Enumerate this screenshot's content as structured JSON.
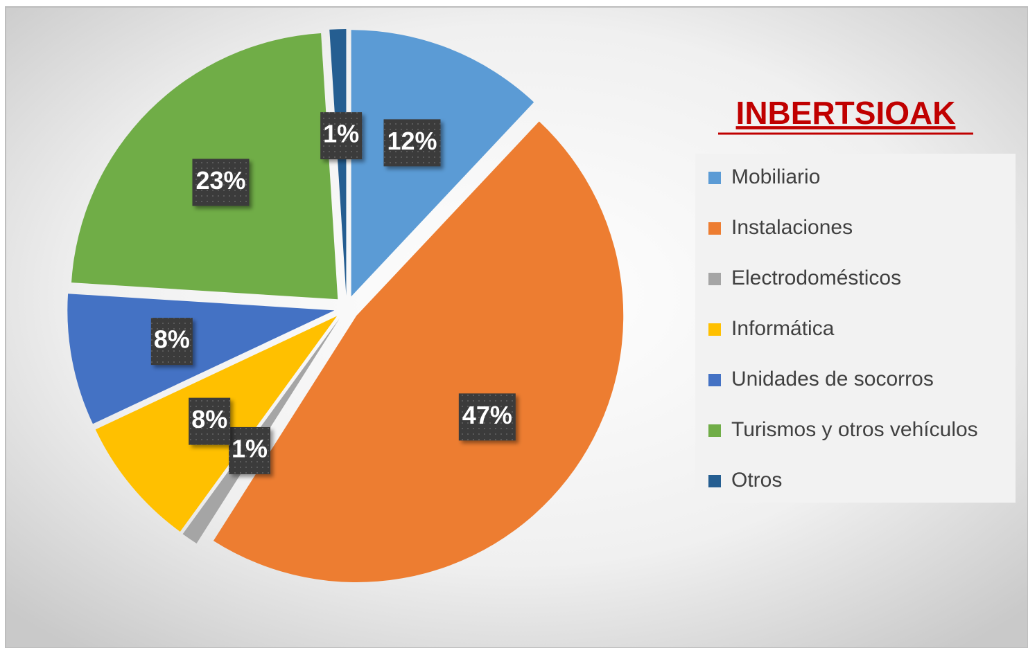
{
  "chart_data": {
    "type": "pie",
    "title": "INBERTSIOAK",
    "categories": [
      "Mobiliario",
      "Instalaciones",
      "Electrodomésticos",
      "Informática",
      "Unidades de socorros",
      "Turismos y otros vehículos",
      "Otros"
    ],
    "values": [
      12,
      47,
      1,
      8,
      8,
      23,
      1
    ],
    "value_labels": [
      "12%",
      "47%",
      "1%",
      "8%",
      "8%",
      "23%",
      "1%"
    ],
    "colors": [
      "#5b9bd5",
      "#ed7d31",
      "#a5a5a5",
      "#ffc000",
      "#4472c4",
      "#70ad47",
      "#255e91"
    ],
    "legend": "right"
  }
}
